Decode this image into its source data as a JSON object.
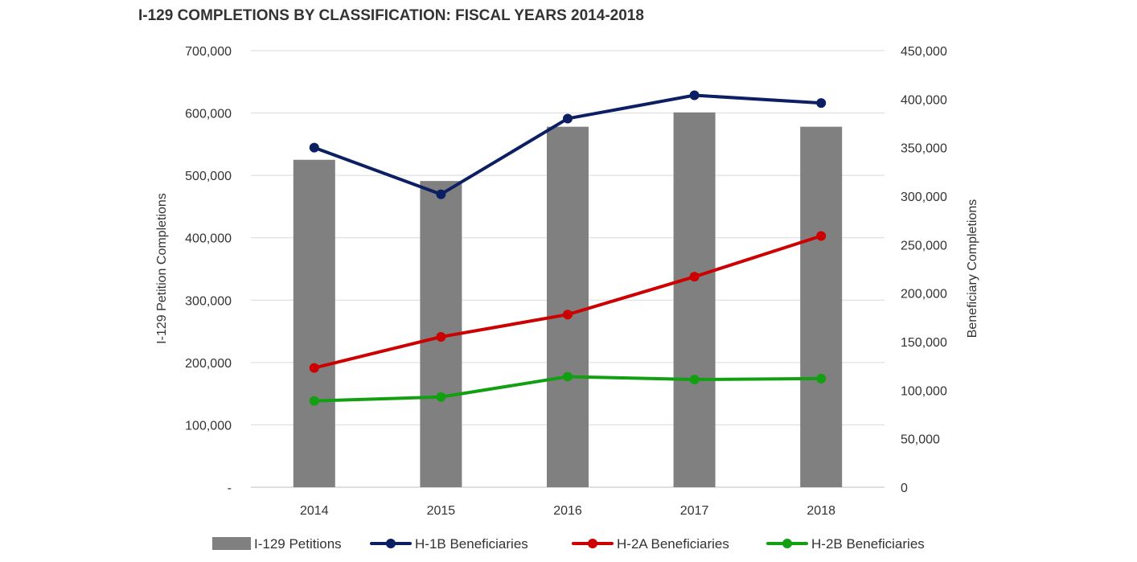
{
  "chart_data": {
    "type": "bar+line",
    "title": "I-129 COMPLETIONS BY CLASSIFICATION: FISCAL YEARS 2014-2018",
    "categories": [
      "2014",
      "2015",
      "2016",
      "2017",
      "2018"
    ],
    "y_left": {
      "label": "I-129 Petition Completions",
      "range": [
        0,
        700000
      ],
      "ticks": [
        "-",
        "100,000",
        "200,000",
        "300,000",
        "400,000",
        "500,000",
        "600,000",
        "700,000"
      ],
      "tick_values": [
        0,
        100000,
        200000,
        300000,
        400000,
        500000,
        600000,
        700000
      ]
    },
    "y_right": {
      "label": "Beneficiary Completions",
      "range": [
        0,
        450000
      ],
      "ticks": [
        "0",
        "50,000",
        "100,000",
        "150,000",
        "200,000",
        "250,000",
        "300,000",
        "350,000",
        "400,000",
        "450,000"
      ],
      "tick_values": [
        0,
        50000,
        100000,
        150000,
        200000,
        250000,
        300000,
        350000,
        400000,
        450000
      ]
    },
    "grid": true,
    "legend_position": "bottom",
    "series": [
      {
        "name": "I-129 Petitions",
        "type": "bar",
        "axis": "left",
        "color": "#808080",
        "values": [
          525000,
          491000,
          578000,
          601000,
          578000
        ]
      },
      {
        "name": "H-1B Beneficiaries",
        "type": "line",
        "axis": "right",
        "color": "#0d1f63",
        "values": [
          350000,
          302000,
          380000,
          404000,
          396000
        ]
      },
      {
        "name": "H-2A Beneficiaries",
        "type": "line",
        "axis": "right",
        "color": "#cc0000",
        "values": [
          123000,
          155000,
          178000,
          217000,
          259000
        ]
      },
      {
        "name": "H-2B Beneficiaries",
        "type": "line",
        "axis": "right",
        "color": "#12a012",
        "values": [
          89000,
          93000,
          114000,
          111000,
          112000
        ]
      }
    ]
  }
}
